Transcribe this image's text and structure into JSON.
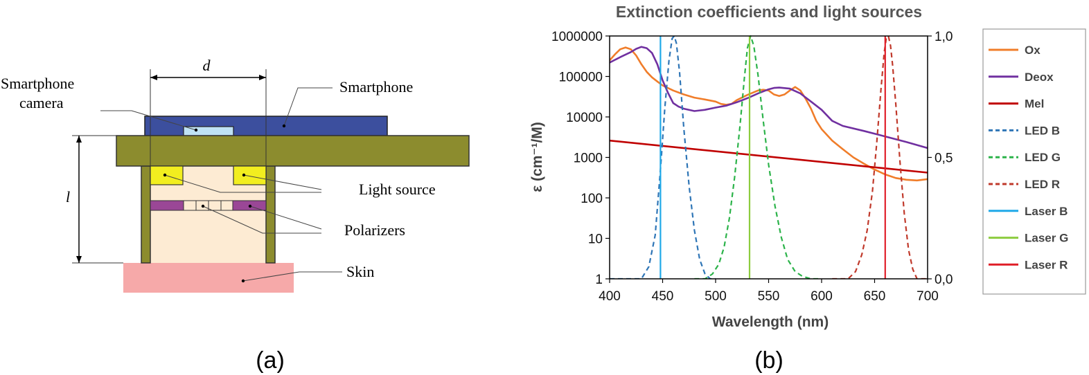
{
  "diagram": {
    "labels": {
      "d": "d",
      "l": "l",
      "camera_line1": "Smartphone",
      "camera_line2": "camera",
      "smartphone": "Smartphone",
      "light_source": "Light source",
      "polarizers": "Polarizers",
      "skin": "Skin"
    },
    "caption": "(a)",
    "colors": {
      "phone": "#3c4f9e",
      "board": "#8c8c2e",
      "interior": "#fdebd3",
      "light_source": "#f2ee1f",
      "polarizer": "#9a4796",
      "camera": "#bfe2f4",
      "skin": "#f6a9a9"
    }
  },
  "chart_caption": "(b)",
  "chart_data": {
    "type": "line",
    "title": "Extinction coefficients and light sources",
    "xlabel": "Wavelength (nm)",
    "ylabel": "ε (cm⁻¹/M)",
    "xlim": [
      400,
      700
    ],
    "ylim_log": [
      1,
      1000000
    ],
    "y2lim": [
      0.0,
      1.0
    ],
    "x_ticks": [
      "400",
      "450",
      "500",
      "550",
      "600",
      "650",
      "700"
    ],
    "y_ticks": [
      "1",
      "10",
      "100",
      "1000",
      "10000",
      "100000",
      "1000000"
    ],
    "y2_ticks": [
      "0,0",
      "0,5",
      "1,0"
    ],
    "grid": false,
    "legend_position": "right",
    "series": [
      {
        "name": "Ox",
        "axis": "left",
        "style": "solid",
        "color": "#f07d2a",
        "x": [
          400,
          405,
          410,
          415,
          420,
          425,
          430,
          435,
          440,
          445,
          450,
          460,
          470,
          480,
          490,
          500,
          505,
          510,
          515,
          520,
          530,
          540,
          545,
          550,
          555,
          560,
          565,
          570,
          575,
          580,
          585,
          590,
          595,
          600,
          610,
          620,
          630,
          640,
          650,
          660,
          670,
          680,
          690,
          700
        ],
        "y": [
          250000,
          350000,
          470000,
          520000,
          470000,
          330000,
          200000,
          130000,
          95000,
          75000,
          60000,
          45000,
          36000,
          30000,
          27000,
          24000,
          21000,
          20000,
          21000,
          26000,
          35000,
          45000,
          47000,
          45000,
          36000,
          33000,
          36000,
          45000,
          55000,
          45000,
          28000,
          16000,
          8000,
          5000,
          2600,
          1600,
          1000,
          700,
          500,
          380,
          310,
          280,
          270,
          290
        ]
      },
      {
        "name": "Deox",
        "axis": "left",
        "style": "solid",
        "color": "#7030a0",
        "x": [
          400,
          410,
          420,
          425,
          430,
          435,
          440,
          445,
          450,
          455,
          460,
          465,
          470,
          480,
          490,
          500,
          510,
          520,
          530,
          540,
          550,
          555,
          560,
          570,
          580,
          590,
          600,
          610,
          620,
          640,
          660,
          680,
          700
        ],
        "y": [
          220000,
          300000,
          400000,
          480000,
          540000,
          500000,
          380000,
          200000,
          80000,
          40000,
          22000,
          18000,
          16000,
          14000,
          15000,
          17000,
          19000,
          23000,
          29000,
          38000,
          48000,
          52000,
          53000,
          50000,
          38000,
          24000,
          15000,
          8000,
          6000,
          4500,
          3300,
          2400,
          1700
        ]
      },
      {
        "name": "Mel",
        "axis": "left",
        "style": "solid",
        "color": "#c00000",
        "x": [
          400,
          700
        ],
        "y": [
          2600,
          420
        ]
      },
      {
        "name": "LED B",
        "axis": "right",
        "style": "dashed",
        "color": "#2e75b6",
        "x": [
          400,
          430,
          437,
          443,
          448,
          452,
          456,
          459,
          461,
          463,
          466,
          470,
          475,
          480,
          485,
          490,
          495,
          500
        ],
        "y": [
          0.0,
          0.0,
          0.05,
          0.18,
          0.45,
          0.7,
          0.9,
          0.99,
          1.0,
          0.97,
          0.85,
          0.62,
          0.38,
          0.2,
          0.08,
          0.02,
          0.0,
          0.0
        ]
      },
      {
        "name": "LED G",
        "axis": "right",
        "style": "dashed",
        "color": "#2cb34a",
        "x": [
          480,
          490,
          497,
          503,
          508,
          513,
          518,
          523,
          527,
          530,
          533,
          536,
          540,
          545,
          550,
          556,
          562,
          568,
          575,
          582,
          590,
          600
        ],
        "y": [
          0.0,
          0.0,
          0.02,
          0.06,
          0.13,
          0.25,
          0.42,
          0.63,
          0.82,
          0.95,
          1.0,
          0.96,
          0.84,
          0.65,
          0.47,
          0.3,
          0.17,
          0.08,
          0.03,
          0.01,
          0.0,
          0.0
        ]
      },
      {
        "name": "LED R",
        "axis": "right",
        "style": "dashed",
        "color": "#c0392b",
        "x": [
          610,
          625,
          632,
          638,
          643,
          648,
          652,
          656,
          659,
          661,
          663,
          665,
          667,
          670,
          674,
          678,
          682,
          686,
          690,
          700
        ],
        "y": [
          0.0,
          0.0,
          0.03,
          0.1,
          0.2,
          0.36,
          0.56,
          0.78,
          0.93,
          0.99,
          1.0,
          0.96,
          0.88,
          0.72,
          0.48,
          0.27,
          0.12,
          0.04,
          0.0,
          0.0
        ]
      },
      {
        "name": "Laser B",
        "axis": "right",
        "style": "solid",
        "color": "#1fa9e8",
        "x": [
          448,
          448
        ],
        "y": [
          0.0,
          1.0
        ]
      },
      {
        "name": "Laser G",
        "axis": "right",
        "style": "solid",
        "color": "#8ccc3e",
        "x": [
          532,
          532
        ],
        "y": [
          0.0,
          1.0
        ]
      },
      {
        "name": "Laser R",
        "axis": "right",
        "style": "solid",
        "color": "#e0202a",
        "x": [
          660,
          660
        ],
        "y": [
          0.0,
          1.0
        ]
      }
    ]
  }
}
